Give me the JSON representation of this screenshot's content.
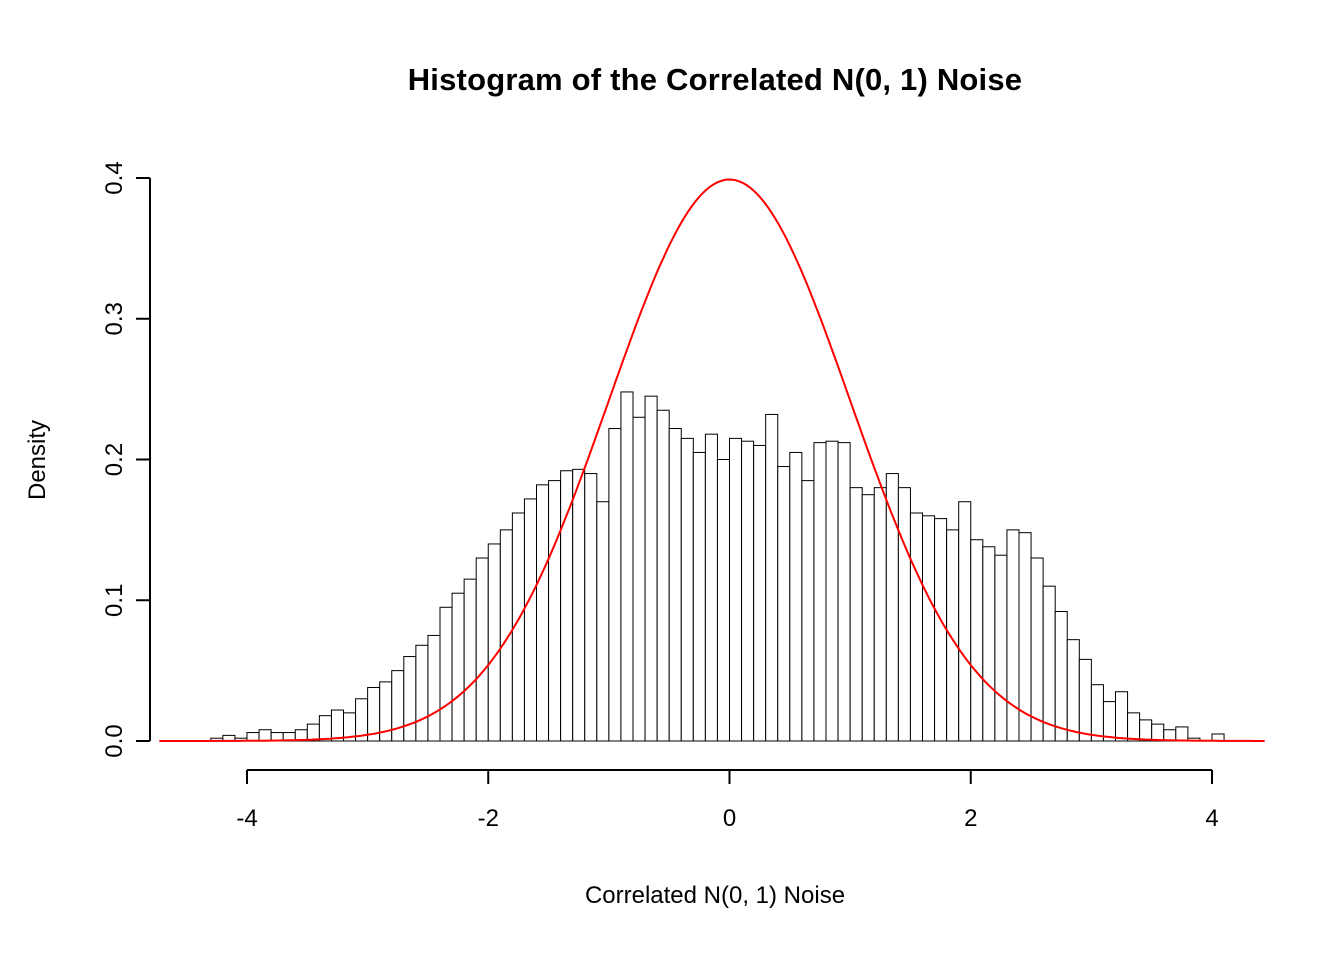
{
  "chart_data": {
    "type": "bar",
    "subtype": "histogram",
    "title": "Histogram of the Correlated N(0, 1) Noise",
    "xlabel": "Correlated N(0, 1) Noise",
    "ylabel": "Density",
    "xlim": [
      -4.72,
      4.45
    ],
    "ylim": [
      0,
      0.4
    ],
    "xticks": [
      -4,
      -2,
      0,
      2,
      4
    ],
    "yticks": [
      0.0,
      0.1,
      0.2,
      0.3,
      0.4
    ],
    "grid": false,
    "legend": "none",
    "bins": {
      "start": -4.3,
      "width": 0.1,
      "densities": [
        0.002,
        0.004,
        0.002,
        0.006,
        0.008,
        0.006,
        0.006,
        0.008,
        0.012,
        0.018,
        0.022,
        0.02,
        0.03,
        0.038,
        0.042,
        0.05,
        0.06,
        0.068,
        0.075,
        0.095,
        0.105,
        0.115,
        0.13,
        0.14,
        0.15,
        0.162,
        0.172,
        0.182,
        0.185,
        0.192,
        0.193,
        0.19,
        0.17,
        0.222,
        0.248,
        0.23,
        0.245,
        0.235,
        0.222,
        0.215,
        0.205,
        0.218,
        0.2,
        0.215,
        0.213,
        0.21,
        0.232,
        0.195,
        0.205,
        0.185,
        0.212,
        0.213,
        0.212,
        0.18,
        0.175,
        0.18,
        0.19,
        0.18,
        0.162,
        0.16,
        0.158,
        0.15,
        0.17,
        0.143,
        0.138,
        0.132,
        0.15,
        0.148,
        0.13,
        0.11,
        0.092,
        0.072,
        0.058,
        0.04,
        0.028,
        0.035,
        0.02,
        0.015,
        0.012,
        0.008,
        0.01,
        0.002,
        0.0,
        0.005
      ]
    },
    "curve": {
      "name": "N(0, 1) density",
      "mean": 0,
      "sd": 1,
      "peak": 0.3989,
      "color": "#ff0000",
      "x_from": -4.72,
      "x_to": 4.45
    },
    "style": {
      "bar_fill": "#ffffff",
      "bar_stroke": "#000000",
      "axis_color": "#000000",
      "background": "#ffffff"
    }
  }
}
